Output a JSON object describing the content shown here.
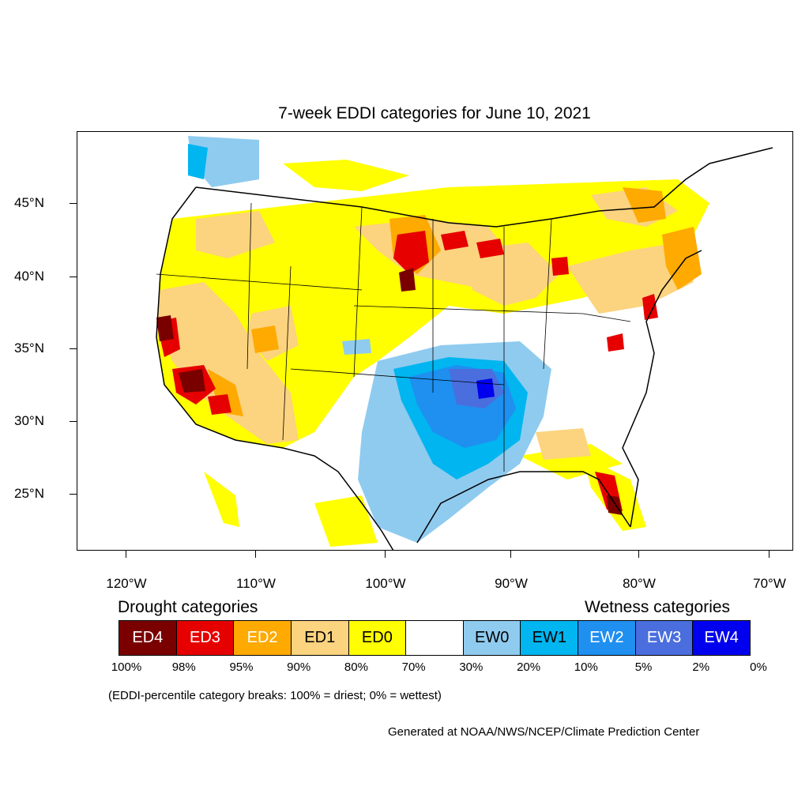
{
  "title": "7-week EDDI categories for June 10, 2021",
  "lat_labels": [
    "45°N",
    "40°N",
    "35°N",
    "30°N",
    "25°N"
  ],
  "lon_labels": [
    "120°W",
    "110°W",
    "100°W",
    "90°W",
    "80°W",
    "70°W"
  ],
  "drought_heading": "Drought categories",
  "wetness_heading": "Wetness categories",
  "legend": [
    {
      "label": "ED4",
      "color": "#7a0000",
      "text_color": "#ffffff"
    },
    {
      "label": "ED3",
      "color": "#e60000",
      "text_color": "#ffffff"
    },
    {
      "label": "ED2",
      "color": "#ffaa00",
      "text_color": "#ffffff"
    },
    {
      "label": "ED1",
      "color": "#fcd37f",
      "text_color": "#000000"
    },
    {
      "label": "ED0",
      "color": "#ffff00",
      "text_color": "#000000"
    },
    {
      "label": "",
      "color": "#ffffff",
      "text_color": "#000000"
    },
    {
      "label": "EW0",
      "color": "#8fcbef",
      "text_color": "#000000"
    },
    {
      "label": "EW1",
      "color": "#00b5f0",
      "text_color": "#000000"
    },
    {
      "label": "EW2",
      "color": "#1f8ff0",
      "text_color": "#ffffff"
    },
    {
      "label": "EW3",
      "color": "#4a6ede",
      "text_color": "#ffffff"
    },
    {
      "label": "EW4",
      "color": "#0000ee",
      "text_color": "#ffffff"
    }
  ],
  "percentiles": [
    "100%",
    "98%",
    "95%",
    "90%",
    "80%",
    "70%",
    "30%",
    "20%",
    "10%",
    "5%",
    "2%",
    "0%"
  ],
  "footnote": "(EDDI-percentile category breaks: 100% = driest; 0% = wettest)",
  "credit": "Generated at NOAA/NWS/NCEP/Climate Prediction Center"
}
